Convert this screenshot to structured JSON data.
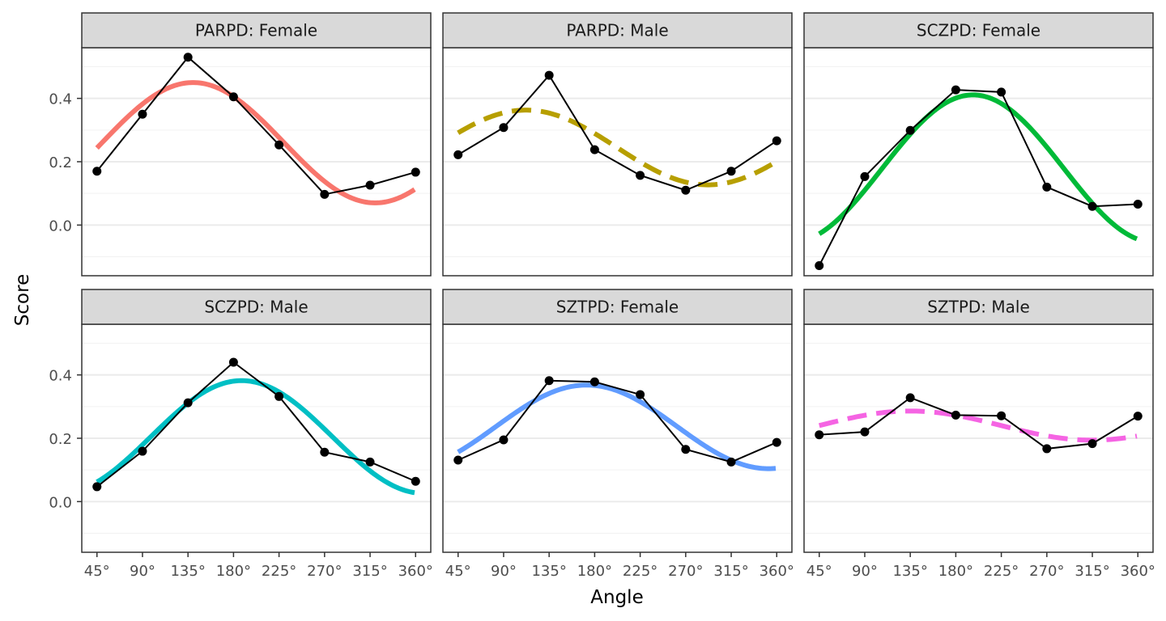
{
  "chart_data": {
    "type": "line",
    "layout": "facet-grid 2 rows x 3 columns, shared axes",
    "xlabel": "Angle",
    "ylabel": "Score",
    "x_ticks": [
      "45°",
      "90°",
      "135°",
      "180°",
      "225°",
      "270°",
      "315°",
      "360°"
    ],
    "x": [
      45,
      90,
      135,
      180,
      225,
      270,
      315,
      360
    ],
    "xlim": [
      30,
      375
    ],
    "y_ticks": [
      0.0,
      0.2,
      0.4
    ],
    "y_tick_labels": [
      "0.0",
      "0.2",
      "0.4"
    ],
    "ylim": [
      -0.16,
      0.56
    ],
    "grid": true,
    "legend": "none",
    "panels": [
      {
        "title": "PARPD: Female",
        "observed": [
          0.17,
          0.35,
          0.53,
          0.405,
          0.253,
          0.097,
          0.126,
          0.167
        ],
        "fit": {
          "elevation": 0.26,
          "amplitude": 0.19,
          "displacement": 140,
          "color": "#F8766D",
          "dash": "solid"
        }
      },
      {
        "title": "PARPD: Male",
        "observed": [
          0.222,
          0.308,
          0.473,
          0.238,
          0.157,
          0.11,
          0.17,
          0.266
        ],
        "fit": {
          "elevation": 0.245,
          "amplitude": 0.118,
          "displacement": 112,
          "color": "#B79F00",
          "dash": "dashed"
        }
      },
      {
        "title": "SCZPD: Female",
        "observed": [
          -0.128,
          0.153,
          0.299,
          0.427,
          0.42,
          0.12,
          0.059,
          0.066
        ],
        "fit": {
          "elevation": 0.178,
          "amplitude": 0.233,
          "displacement": 197,
          "color": "#00BA38",
          "dash": "solid"
        }
      },
      {
        "title": "SCZPD: Male",
        "observed": [
          0.047,
          0.159,
          0.312,
          0.44,
          0.332,
          0.156,
          0.125,
          0.064
        ],
        "fit": {
          "elevation": 0.204,
          "amplitude": 0.178,
          "displacement": 188,
          "color": "#00BFC4",
          "dash": "solid"
        }
      },
      {
        "title": "SZTPD: Female",
        "observed": [
          0.131,
          0.195,
          0.382,
          0.378,
          0.338,
          0.165,
          0.125,
          0.187
        ],
        "fit": {
          "elevation": 0.236,
          "amplitude": 0.132,
          "displacement": 172,
          "color": "#619CFF",
          "dash": "solid"
        }
      },
      {
        "title": "SZTPD: Male",
        "observed": [
          0.211,
          0.22,
          0.328,
          0.273,
          0.271,
          0.167,
          0.183,
          0.27
        ],
        "fit": {
          "elevation": 0.24,
          "amplitude": 0.046,
          "displacement": 135,
          "color": "#F564E3",
          "dash": "dashed"
        }
      }
    ]
  }
}
